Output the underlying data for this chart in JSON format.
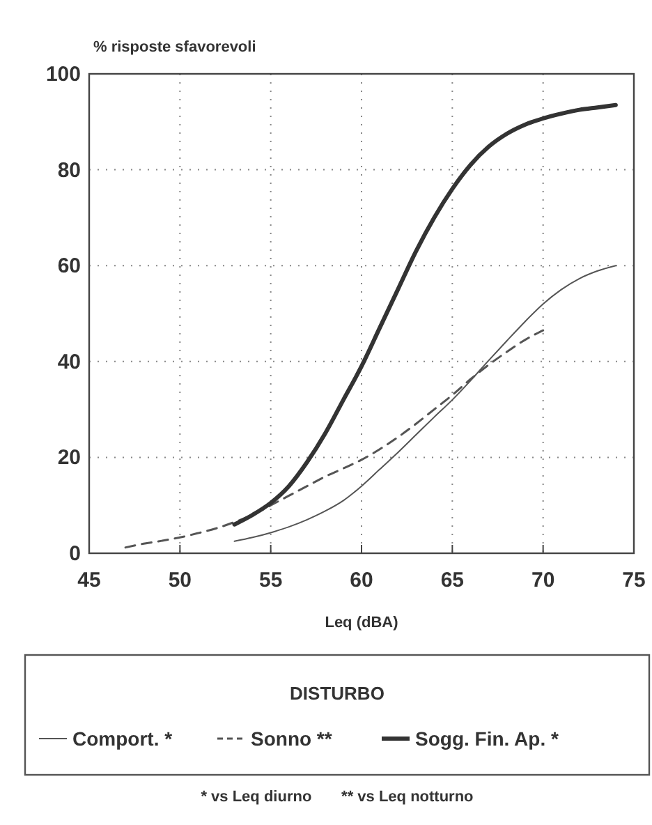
{
  "chart_data": {
    "type": "line",
    "ylabel": "% risposte sfavorevoli",
    "xlabel": "Leq (dBA)",
    "legend_title": "DISTURBO",
    "legend": "bottom",
    "grid": true,
    "xlim": [
      45,
      75
    ],
    "xticks": [
      45,
      50,
      55,
      60,
      65,
      70,
      75
    ],
    "ylim": [
      0,
      100
    ],
    "yticks": [
      0,
      20,
      40,
      60,
      80,
      100
    ],
    "annotations": [
      "* vs Leq diurno       ** vs Leq notturno"
    ],
    "series": [
      {
        "name": "Comport. *",
        "color": "#555555",
        "line_style": "solid",
        "x": [
          53,
          54,
          55,
          56,
          57,
          58,
          59,
          60,
          61,
          62,
          63,
          64,
          65,
          66,
          67,
          68,
          69,
          70,
          71,
          72,
          73,
          74
        ],
        "values": [
          2.5,
          3.3,
          4.3,
          5.5,
          7,
          8.8,
          11,
          14,
          17.5,
          21,
          24.7,
          28.4,
          32,
          36,
          40.2,
          44.3,
          48.3,
          52,
          55,
          57.3,
          58.9,
          60
        ]
      },
      {
        "name": "Sonno **",
        "color": "#555555",
        "line_style": "dashed",
        "x": [
          47,
          48,
          49,
          50,
          51,
          52,
          53,
          54,
          55,
          56,
          57,
          58,
          59,
          60,
          61,
          62,
          63,
          64,
          65,
          66,
          67,
          68,
          69,
          70
        ],
        "values": [
          1.2,
          2,
          2.6,
          3.3,
          4.2,
          5.2,
          6.5,
          8,
          10,
          12,
          14,
          16,
          17.7,
          19.5,
          21.7,
          24.2,
          27,
          30,
          33,
          36.3,
          39.3,
          42,
          44.5,
          46.5
        ]
      },
      {
        "name": "Sogg. Fin. Ap. *",
        "color": "#333333",
        "line_style": "solid",
        "x": [
          53,
          54,
          55,
          56,
          57,
          58,
          59,
          60,
          61,
          62,
          63,
          64,
          65,
          66,
          67,
          68,
          69,
          70,
          71,
          72,
          73,
          74
        ],
        "values": [
          6,
          8,
          10.5,
          14,
          19,
          25,
          32,
          39,
          47,
          55,
          63,
          70,
          76,
          81,
          84.8,
          87.5,
          89.4,
          90.7,
          91.7,
          92.5,
          93,
          93.5
        ]
      }
    ]
  }
}
